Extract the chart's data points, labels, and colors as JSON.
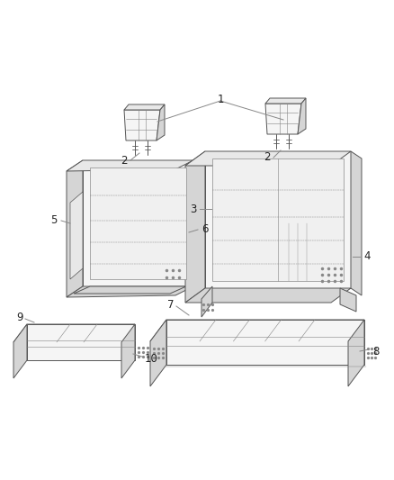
{
  "background_color": "#ffffff",
  "fig_width": 4.38,
  "fig_height": 5.33,
  "dpi": 100,
  "lc": "#888888",
  "lc_dark": "#555555",
  "face_light": "#f5f5f5",
  "face_mid": "#e8e8e8",
  "face_dark": "#d5d5d5",
  "lw": 0.7
}
